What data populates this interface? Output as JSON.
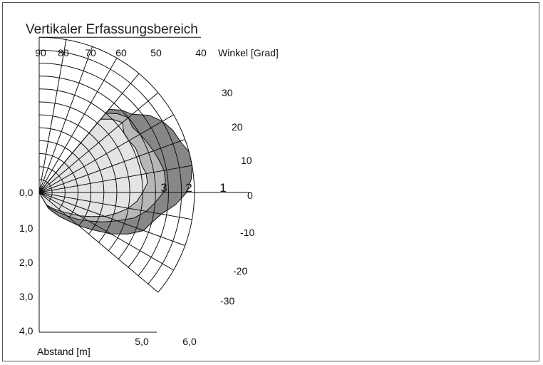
{
  "chart_data": {
    "type": "polar-area",
    "title": "Vertikaler Erfassungsbereich",
    "angle_axis": {
      "label": "Winkel [Grad]",
      "ticks_top": [
        "90",
        "80",
        "70",
        "60",
        "50",
        "40"
      ],
      "ticks_right": [
        "30",
        "20",
        "10",
        "0",
        "-10",
        "-20",
        "-30"
      ]
    },
    "distance_axis": {
      "label": "Abstand [m]",
      "ticks_left": [
        "0,0",
        "1,0",
        "2,0",
        "3,0",
        "4,0"
      ],
      "ticks_bottom": [
        "5,0",
        "6,0"
      ],
      "range": [
        0,
        6
      ]
    },
    "angle_range_deg": [
      -40,
      90
    ],
    "radial_lines_deg": [
      90,
      80,
      70,
      60,
      50,
      40,
      30,
      20,
      10,
      0,
      -10,
      -20,
      -30,
      -40
    ],
    "series": [
      {
        "name": "1",
        "color": "#878787",
        "points": [
          [
            50,
            4.2
          ],
          [
            45,
            4.5
          ],
          [
            40,
            4.7
          ],
          [
            35,
            5.2
          ],
          [
            30,
            5.5
          ],
          [
            25,
            5.7
          ],
          [
            20,
            5.8
          ],
          [
            15,
            6.0
          ],
          [
            10,
            6.0
          ],
          [
            5,
            5.9
          ],
          [
            0,
            5.7
          ],
          [
            -5,
            5.3
          ],
          [
            -10,
            4.8
          ],
          [
            -15,
            4.5
          ],
          [
            -20,
            4.3
          ],
          [
            -25,
            3.8
          ],
          [
            -30,
            3.2
          ],
          [
            -35,
            2.5
          ],
          [
            -40,
            2.0
          ],
          [
            -45,
            1.5
          ],
          [
            -50,
            1.2
          ],
          [
            -55,
            0.9
          ],
          [
            -60,
            0.7
          ]
        ]
      },
      {
        "name": "2",
        "color": "#b7b7b7",
        "points": [
          [
            50,
            4.0
          ],
          [
            45,
            4.3
          ],
          [
            40,
            4.5
          ],
          [
            35,
            4.4
          ],
          [
            30,
            4.5
          ],
          [
            25,
            4.6
          ],
          [
            20,
            4.7
          ],
          [
            15,
            4.8
          ],
          [
            10,
            4.9
          ],
          [
            5,
            4.9
          ],
          [
            0,
            4.8
          ],
          [
            -5,
            4.5
          ],
          [
            -10,
            4.2
          ],
          [
            -15,
            3.8
          ],
          [
            -20,
            3.2
          ],
          [
            -25,
            2.7
          ],
          [
            -30,
            2.2
          ],
          [
            -35,
            1.8
          ],
          [
            -40,
            1.4
          ],
          [
            -45,
            1.1
          ],
          [
            -50,
            0.9
          ],
          [
            -55,
            0.75
          ],
          [
            -60,
            0.6
          ]
        ]
      },
      {
        "name": "3",
        "color": "#e4e4e4",
        "points": [
          [
            50,
            3.7
          ],
          [
            45,
            4.0
          ],
          [
            40,
            4.2
          ],
          [
            35,
            4.0
          ],
          [
            30,
            4.0
          ],
          [
            25,
            4.1
          ],
          [
            20,
            4.1
          ],
          [
            15,
            4.1
          ],
          [
            10,
            4.2
          ],
          [
            5,
            4.2
          ],
          [
            0,
            4.0
          ],
          [
            -5,
            3.8
          ],
          [
            -10,
            3.5
          ],
          [
            -15,
            3.1
          ],
          [
            -20,
            2.7
          ],
          [
            -25,
            2.2
          ],
          [
            -30,
            1.8
          ],
          [
            -35,
            1.4
          ],
          [
            -40,
            1.15
          ],
          [
            -45,
            0.95
          ],
          [
            -50,
            0.8
          ],
          [
            -55,
            0.65
          ],
          [
            -60,
            0.55
          ]
        ]
      }
    ]
  }
}
